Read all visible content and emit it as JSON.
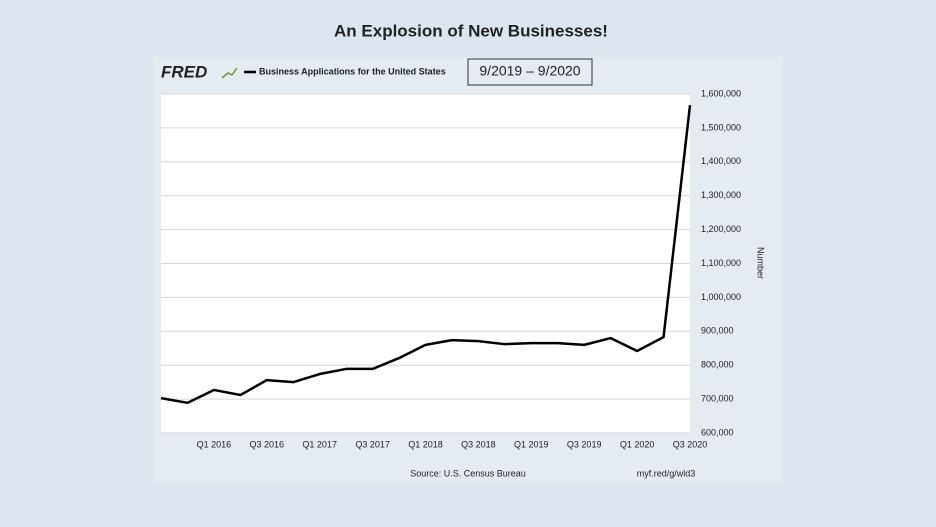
{
  "chart_data": {
    "type": "line",
    "title": "An Explosion of New Businesses!",
    "logo": "FRED",
    "annotation": "9/2019 – 9/2020",
    "ylabel": "Number",
    "source": "Source: U.S. Census Bureau",
    "link": "myf.red/g/wld3",
    "categories": [
      null,
      null,
      "Q1 2016",
      null,
      "Q3 2016",
      null,
      "Q1 2017",
      null,
      "Q3 2017",
      null,
      "Q1 2018",
      null,
      "Q3 2018",
      null,
      "Q1 2019",
      null,
      "Q3 2019",
      null,
      "Q1 2020",
      null,
      "Q3 2020"
    ],
    "series": [
      {
        "name": "Business Applications for the United States",
        "color": "#000000",
        "values": [
          703000,
          689000,
          727000,
          712000,
          756000,
          750000,
          774000,
          789000,
          789000,
          821000,
          860000,
          874000,
          871000,
          862000,
          865000,
          865000,
          860000,
          880000,
          842000,
          883000,
          1567000
        ]
      }
    ],
    "ylim": [
      600000,
      1600000
    ],
    "yticks": [
      {
        "value": 600000,
        "label": "600,000"
      },
      {
        "value": 700000,
        "label": "700,000"
      },
      {
        "value": 800000,
        "label": "800,000"
      },
      {
        "value": 900000,
        "label": "900,000"
      },
      {
        "value": 1000000,
        "label": "1,000,000"
      },
      {
        "value": 1100000,
        "label": "1,100,000"
      },
      {
        "value": 1200000,
        "label": "1,200,000"
      },
      {
        "value": 1300000,
        "label": "1,300,000"
      },
      {
        "value": 1400000,
        "label": "1,400,000"
      },
      {
        "value": 1500000,
        "label": "1,500,000"
      },
      {
        "value": 1600000,
        "label": "1,600,000"
      }
    ],
    "grid": true
  }
}
